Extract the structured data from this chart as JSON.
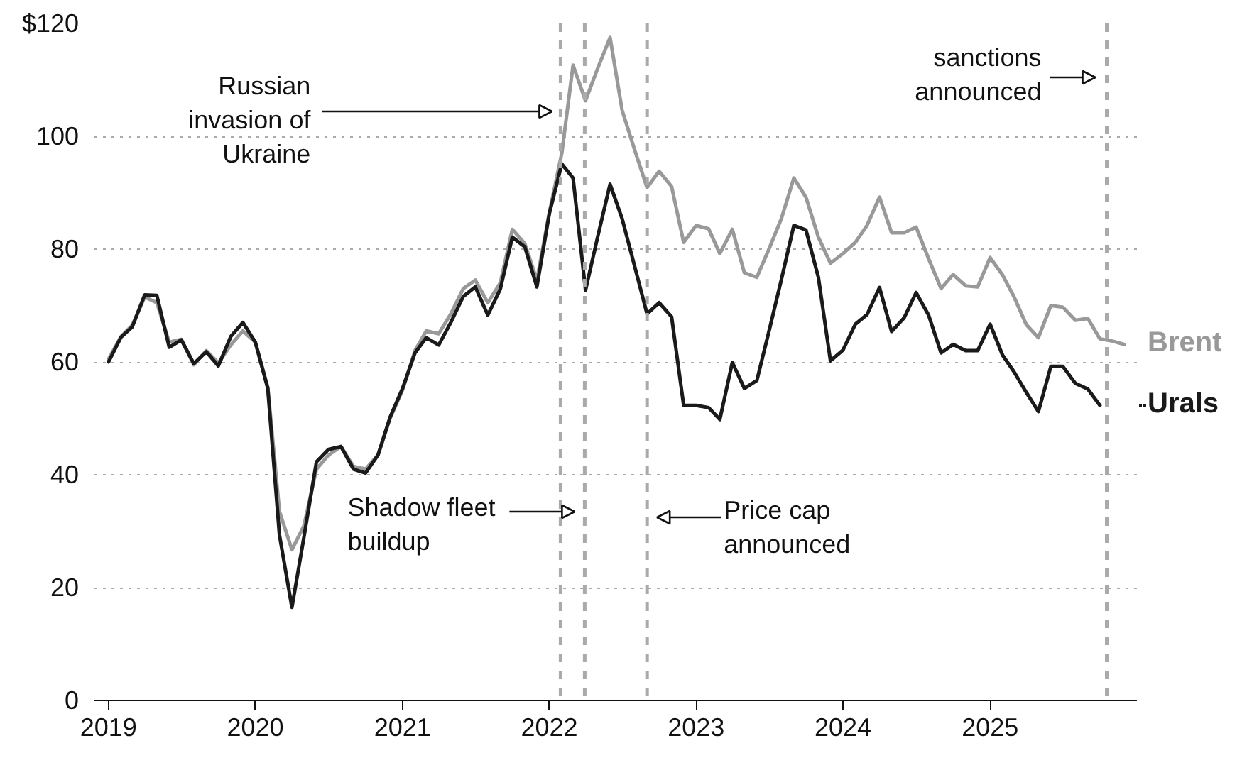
{
  "chart_data": {
    "type": "line",
    "line_style": "solid",
    "grid": "y",
    "x": [
      "2019-01",
      "2019-02",
      "2019-03",
      "2019-04",
      "2019-05",
      "2019-06",
      "2019-07",
      "2019-08",
      "2019-09",
      "2019-10",
      "2019-11",
      "2019-12",
      "2020-01",
      "2020-02",
      "2020-03",
      "2020-04",
      "2020-05",
      "2020-06",
      "2020-07",
      "2020-08",
      "2020-09",
      "2020-10",
      "2020-11",
      "2020-12",
      "2021-01",
      "2021-02",
      "2021-03",
      "2021-04",
      "2021-05",
      "2021-06",
      "2021-07",
      "2021-08",
      "2021-09",
      "2021-10",
      "2021-11",
      "2021-12",
      "2022-01",
      "2022-02",
      "2022-03",
      "2022-04",
      "2022-05",
      "2022-06",
      "2022-07",
      "2022-08",
      "2022-09",
      "2022-10",
      "2022-11",
      "2022-12",
      "2023-01",
      "2023-02",
      "2023-03",
      "2023-04",
      "2023-05",
      "2023-06",
      "2023-07",
      "2023-08",
      "2023-09",
      "2023-10",
      "2023-11",
      "2023-12",
      "2024-01",
      "2024-02",
      "2024-03",
      "2024-04",
      "2024-05",
      "2024-06",
      "2024-07",
      "2024-08",
      "2024-09",
      "2024-10",
      "2024-11",
      "2024-12",
      "2025-01",
      "2025-02",
      "2025-03",
      "2025-04",
      "2025-05",
      "2025-06",
      "2025-07",
      "2025-08",
      "2025-09",
      "2025-10"
    ],
    "series": [
      {
        "name": "Brent",
        "color": "#999999",
        "x": [
          "2019-01",
          "2019-02",
          "2019-03",
          "2019-04",
          "2019-05",
          "2019-06",
          "2019-07",
          "2019-08",
          "2019-09",
          "2019-10",
          "2019-11",
          "2019-12",
          "2020-01",
          "2020-02",
          "2020-03",
          "2020-04",
          "2020-05",
          "2020-06",
          "2020-07",
          "2020-08",
          "2020-09",
          "2020-10",
          "2020-11",
          "2020-12",
          "2021-01",
          "2021-02",
          "2021-03",
          "2021-04",
          "2021-05",
          "2021-06",
          "2021-07",
          "2021-08",
          "2021-09",
          "2021-10",
          "2021-11",
          "2021-12",
          "2022-01",
          "2022-02",
          "2022-03",
          "2022-04",
          "2022-05",
          "2022-06",
          "2022-07",
          "2022-08",
          "2022-09",
          "2022-10",
          "2022-11",
          "2022-12",
          "2023-01",
          "2023-02",
          "2023-03",
          "2023-04",
          "2023-05",
          "2023-06",
          "2023-07",
          "2023-08",
          "2023-09",
          "2023-10",
          "2023-11",
          "2023-12",
          "2024-01",
          "2024-02",
          "2024-03",
          "2024-04",
          "2024-05",
          "2024-06",
          "2024-07",
          "2024-08",
          "2024-09",
          "2024-10",
          "2024-11",
          "2024-12",
          "2025-01",
          "2025-02",
          "2025-03",
          "2025-04",
          "2025-05",
          "2025-06",
          "2025-07",
          "2025-08",
          "2025-09",
          "2025-10",
          "2025-11",
          "2025-12"
        ],
        "values": [
          60.5,
          64.5,
          66.5,
          71.5,
          70.5,
          63.5,
          64,
          59.5,
          62,
          59.8,
          63,
          65.5,
          63.5,
          55.5,
          33.5,
          26.7,
          31,
          41,
          43.5,
          45,
          41.5,
          41,
          43.5,
          50,
          55,
          62,
          65.5,
          65,
          68.5,
          73,
          74.5,
          70.5,
          74,
          83.5,
          81,
          74.5,
          86.5,
          97,
          112.6,
          106.3,
          112,
          117.5,
          104.6,
          97.6,
          90.9,
          93.8,
          91.1,
          81.2,
          84.2,
          83.6,
          79.2,
          83.5,
          75.8,
          75,
          80,
          85.4,
          92.6,
          89.2,
          82.1,
          77.5,
          79.2,
          81.2,
          84.2,
          89.2,
          82.9,
          82.9,
          83.9,
          78.3,
          73,
          75.5,
          73.5,
          73.3,
          78.5,
          75.4,
          71.6,
          66.6,
          64.3,
          70,
          69.7,
          67.4,
          67.7,
          64.1,
          63.7,
          63.1
        ]
      },
      {
        "name": "Urals",
        "color": "#1a1a1a",
        "values": [
          60,
          64.4,
          66.2,
          71.9,
          71.8,
          62.6,
          63.9,
          59.7,
          61.8,
          59.3,
          64.5,
          67,
          63.5,
          55.3,
          29.3,
          16.5,
          29,
          42.3,
          44.5,
          45,
          41,
          40.3,
          43.5,
          50.2,
          55.3,
          61.6,
          64.3,
          63,
          67,
          71.6,
          73.3,
          68.3,
          72.9,
          82.1,
          80.4,
          73.3,
          86.3,
          95.1,
          92.6,
          72.7,
          82.1,
          91.5,
          85.4,
          77,
          68.5,
          70.5,
          68,
          52.3,
          52.3,
          51.9,
          49.8,
          59.9,
          55.3,
          56.7,
          65.4,
          74.6,
          84.2,
          83.4,
          75,
          60.2,
          62.1,
          66.7,
          68.4,
          73.2,
          65.4,
          67.8,
          72.3,
          68.3,
          61.6,
          63.1,
          62,
          62,
          66.7,
          61.2,
          58.3,
          54.6,
          51.2,
          59.2,
          59.2,
          56.2,
          55.2,
          52.3
        ]
      }
    ],
    "xlim": [
      "2018-11-27",
      "2026-01-01"
    ],
    "xticks": [
      {
        "value": "2019-01-01",
        "label": "2019"
      },
      {
        "value": "2020-01-01",
        "label": "2020"
      },
      {
        "value": "2021-01-01",
        "label": "2021"
      },
      {
        "value": "2022-01-01",
        "label": "2022"
      },
      {
        "value": "2023-01-01",
        "label": "2023"
      },
      {
        "value": "2024-01-01",
        "label": "2024"
      },
      {
        "value": "2025-01-01",
        "label": "2025"
      }
    ],
    "ylim": [
      0,
      120
    ],
    "yticks": [
      0,
      20,
      40,
      60,
      80,
      100,
      {
        "value": 120,
        "label": "$120"
      }
    ],
    "ref_lines": [
      {
        "axis": "x",
        "value": "2022-01-29",
        "label": "Russian\ninvasion of\nUkraine",
        "color": "#aaaaaa",
        "line_style": "dashed"
      },
      {
        "axis": "x",
        "value": "2022-03-30",
        "label": "Shadow fleet\nbuildup",
        "color": "#aaaaaa",
        "line_style": "dashed"
      },
      {
        "axis": "x",
        "value": "2022-09-01",
        "label": "Price cap\nannounced",
        "color": "#aaaaaa",
        "line_style": "dashed"
      },
      {
        "axis": "x",
        "value": "2025-10-18",
        "label": "sanctions\nannounced",
        "color": "#aaaaaa",
        "line_style": "dashed"
      }
    ]
  }
}
